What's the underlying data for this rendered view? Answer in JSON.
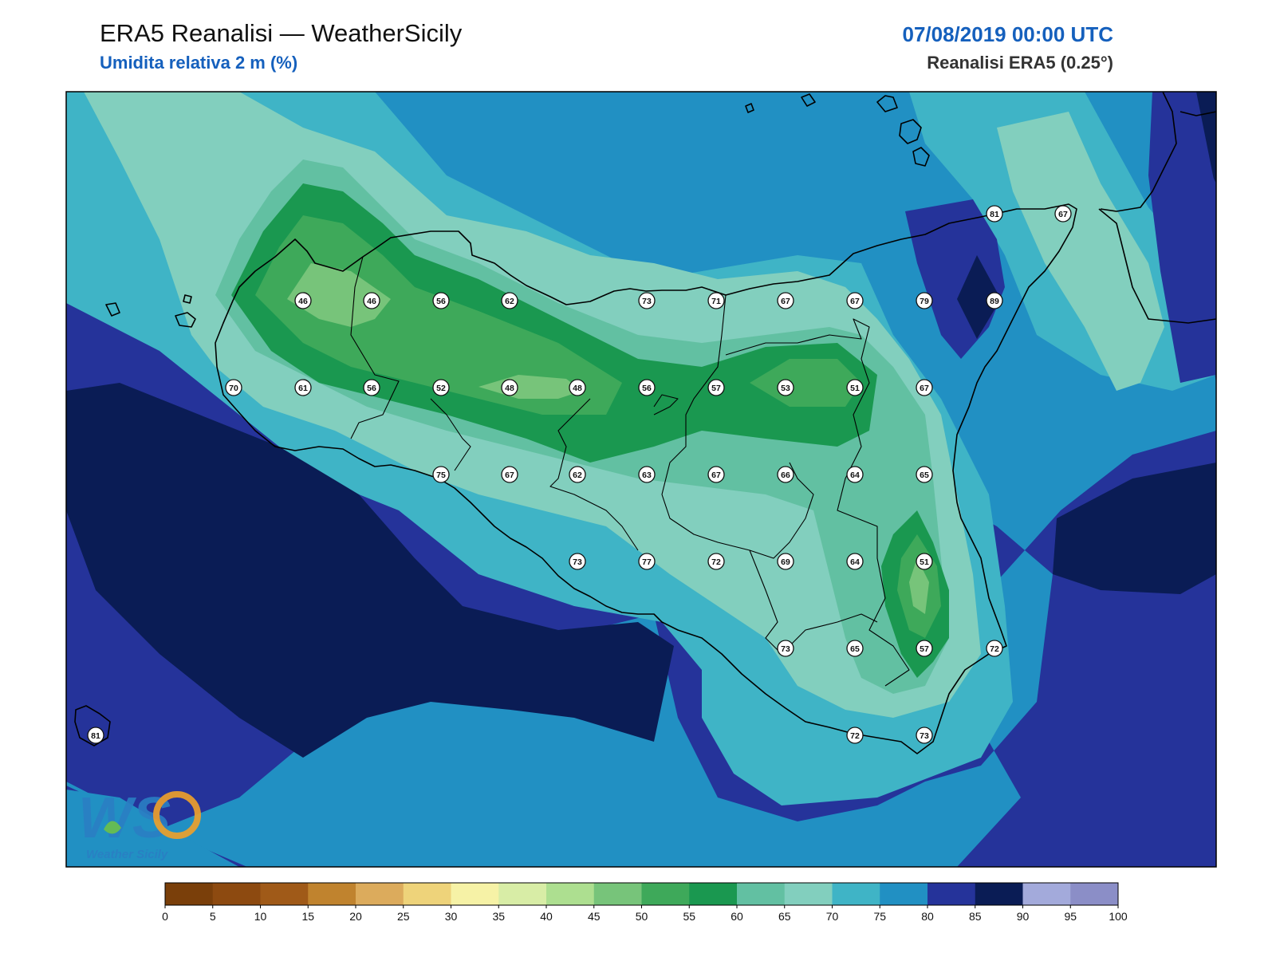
{
  "header": {
    "title": "ERA5 Reanalisi — WeatherSicily",
    "subtitle": "Umidita relativa 2 m (%)",
    "datetime": "07/08/2019 00:00 UTC",
    "source": "Reanalisi ERA5 (0.25°)"
  },
  "logo": {
    "text": "Weather Sicily",
    "monogram": "WS"
  },
  "colorbar": {
    "ticks": [
      "0",
      "5",
      "10",
      "15",
      "20",
      "25",
      "30",
      "35",
      "40",
      "45",
      "50",
      "55",
      "60",
      "65",
      "70",
      "75",
      "80",
      "85",
      "90",
      "95",
      "100"
    ],
    "colors": [
      "#7a3f0a",
      "#8d4a10",
      "#a05a18",
      "#c0832e",
      "#dcab5c",
      "#eed37a",
      "#f6f2a6",
      "#d8eda6",
      "#addf90",
      "#77c47a",
      "#3ea95a",
      "#1a9850",
      "#62c0a2",
      "#82cfbe",
      "#3fb4c6",
      "#2190c3",
      "#25339a",
      "#0a1c55",
      "#a3aadb",
      "#8b8ec7"
    ]
  },
  "stations": [
    {
      "label": "81"
    },
    {
      "label": "67"
    },
    {
      "label": "46"
    },
    {
      "label": "46"
    },
    {
      "label": "56"
    },
    {
      "label": "62"
    },
    {
      "label": "73"
    },
    {
      "label": "71"
    },
    {
      "label": "67"
    },
    {
      "label": "67"
    },
    {
      "label": "79"
    },
    {
      "label": "89"
    },
    {
      "label": "70"
    },
    {
      "label": "61"
    },
    {
      "label": "56"
    },
    {
      "label": "52"
    },
    {
      "label": "48"
    },
    {
      "label": "48"
    },
    {
      "label": "56"
    },
    {
      "label": "57"
    },
    {
      "label": "53"
    },
    {
      "label": "51"
    },
    {
      "label": "67"
    },
    {
      "label": "75"
    },
    {
      "label": "67"
    },
    {
      "label": "62"
    },
    {
      "label": "63"
    },
    {
      "label": "67"
    },
    {
      "label": "66"
    },
    {
      "label": "64"
    },
    {
      "label": "65"
    },
    {
      "label": "73"
    },
    {
      "label": "77"
    },
    {
      "label": "72"
    },
    {
      "label": "69"
    },
    {
      "label": "64"
    },
    {
      "label": "51"
    },
    {
      "label": "73"
    },
    {
      "label": "65"
    },
    {
      "label": "57"
    },
    {
      "label": "72"
    },
    {
      "label": "72"
    },
    {
      "label": "73"
    },
    {
      "label": "81"
    }
  ]
}
